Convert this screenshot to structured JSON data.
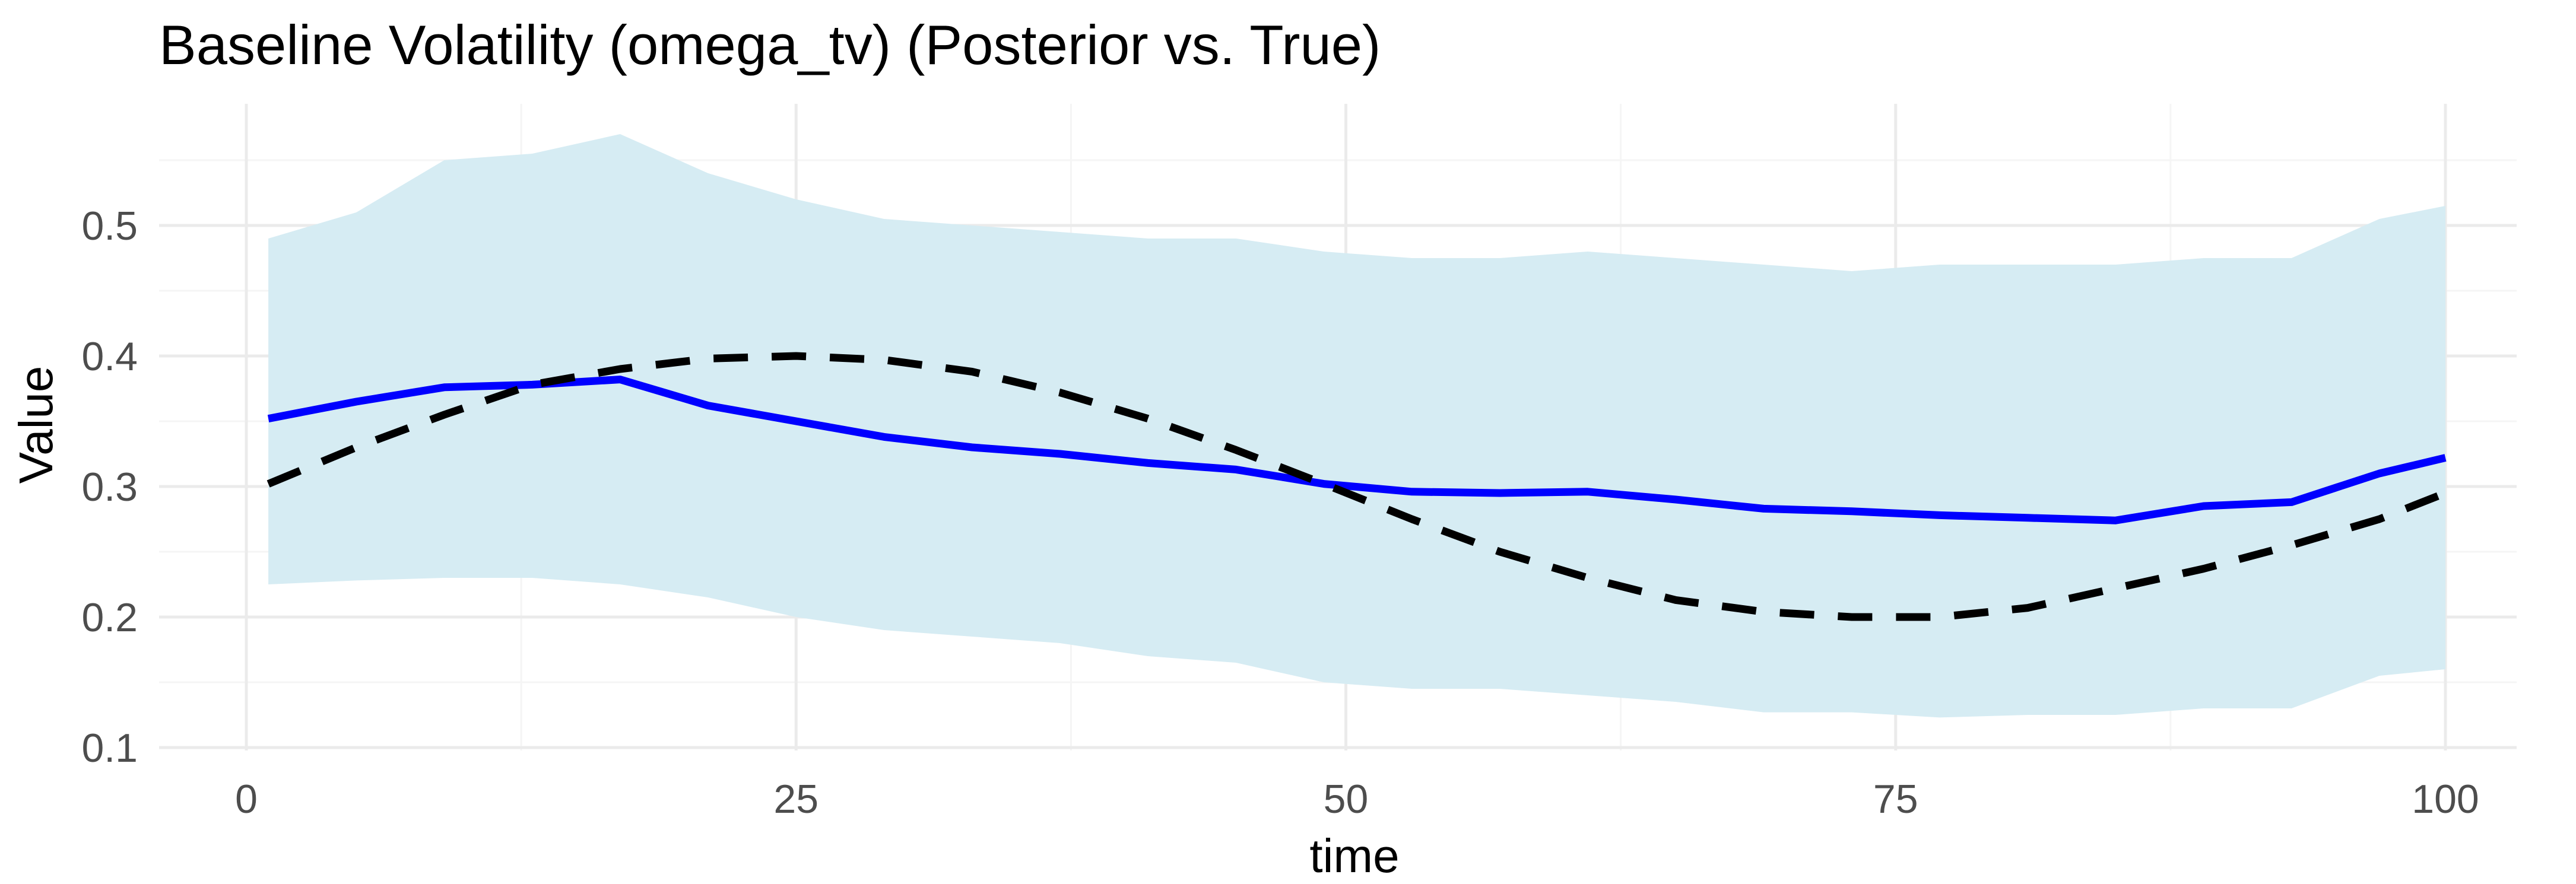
{
  "chart_data": {
    "type": "line",
    "title": "Baseline Volatility (omega_tv) (Posterior vs. True)",
    "xlabel": "time",
    "ylabel": "Value",
    "xlim": [
      1,
      100
    ],
    "ylim": [
      0.1,
      0.57
    ],
    "x_ticks": [
      0,
      25,
      50,
      75,
      100
    ],
    "y_ticks": [
      0.1,
      0.2,
      0.3,
      0.4,
      0.5
    ],
    "grid": true,
    "legend": "none",
    "colors": {
      "band": "#d6ecf3",
      "posterior": "#0000ff",
      "true": "#000000",
      "grid_major": "#ebebeb",
      "grid_minor": "#f5f5f5"
    },
    "x": [
      1,
      5,
      9,
      13,
      17,
      21,
      25,
      29,
      33,
      37,
      41,
      45,
      49,
      53,
      57,
      61,
      65,
      69,
      73,
      77,
      81,
      85,
      89,
      93,
      97,
      100
    ],
    "band": {
      "upper": [
        0.49,
        0.51,
        0.55,
        0.555,
        0.57,
        0.54,
        0.52,
        0.505,
        0.5,
        0.495,
        0.49,
        0.49,
        0.48,
        0.475,
        0.475,
        0.48,
        0.475,
        0.47,
        0.465,
        0.47,
        0.47,
        0.47,
        0.475,
        0.475,
        0.505,
        0.515
      ],
      "lower": [
        0.225,
        0.228,
        0.23,
        0.23,
        0.225,
        0.215,
        0.2,
        0.19,
        0.185,
        0.18,
        0.17,
        0.165,
        0.15,
        0.145,
        0.145,
        0.14,
        0.135,
        0.127,
        0.127,
        0.123,
        0.125,
        0.125,
        0.13,
        0.13,
        0.155,
        0.16
      ]
    },
    "series": [
      {
        "role": "posterior",
        "style": "solid",
        "values": [
          0.352,
          0.365,
          0.376,
          0.378,
          0.382,
          0.362,
          0.35,
          0.338,
          0.33,
          0.325,
          0.318,
          0.313,
          0.302,
          0.296,
          0.295,
          0.296,
          0.29,
          0.283,
          0.281,
          0.278,
          0.276,
          0.274,
          0.285,
          0.288,
          0.31,
          0.322
        ]
      },
      {
        "role": "true",
        "style": "dashed",
        "values": [
          0.302,
          0.33,
          0.355,
          0.378,
          0.39,
          0.398,
          0.4,
          0.397,
          0.388,
          0.372,
          0.352,
          0.328,
          0.302,
          0.275,
          0.25,
          0.23,
          0.213,
          0.204,
          0.2,
          0.2,
          0.207,
          0.222,
          0.237,
          0.255,
          0.275,
          0.295
        ]
      }
    ]
  }
}
